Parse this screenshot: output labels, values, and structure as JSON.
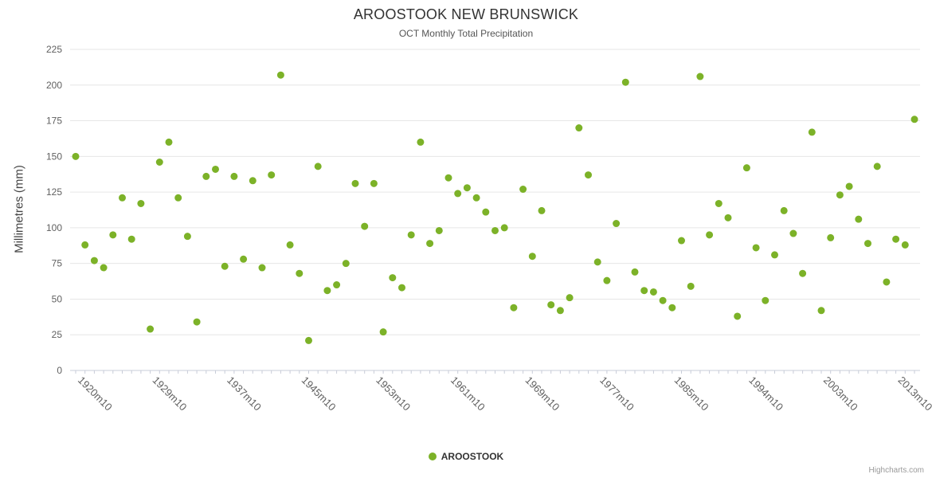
{
  "header": {
    "title": "AROOSTOOK NEW BRUNSWICK",
    "subtitle": "OCT Monthly Total Precipitation"
  },
  "legend": {
    "items": [
      {
        "label": "AROOSTOOK",
        "color": "#7cb228"
      }
    ]
  },
  "credits": {
    "label": "Highcharts.com"
  },
  "colors": {
    "title": "#333333",
    "subtitle": "#555555",
    "y_title": "#444444",
    "axis_label": "#606060",
    "legend": "#333333",
    "credits": "#999999",
    "grid": "#e6e6e6",
    "axis_line": "#c8ccd8",
    "marker": "#7cb228"
  },
  "chart_data": {
    "type": "scatter",
    "title": "AROOSTOOK NEW BRUNSWICK",
    "subtitle": "OCT Monthly Total Precipitation",
    "xlabel": "",
    "ylabel": "Millimetres (mm)",
    "ylim": [
      0,
      225
    ],
    "ytick_interval": 25,
    "x_tick_step": 8,
    "grid": true,
    "legend_position": "bottom",
    "series_name": "AROOSTOOK",
    "categories": [
      "1920m10",
      "1921m10",
      "1922m10",
      "1923m10",
      "1924m10",
      "1926m10",
      "1927m10",
      "1928m10",
      "1929m10",
      "1930m10",
      "1931m10",
      "1932m10",
      "1933m10",
      "1934m10",
      "1935m10",
      "1936m10",
      "1937m10",
      "1938m10",
      "1939m10",
      "1940m10",
      "1941m10",
      "1942m10",
      "1943m10",
      "1944m10",
      "1945m10",
      "1946m10",
      "1947m10",
      "1948m10",
      "1949m10",
      "1950m10",
      "1951m10",
      "1952m10",
      "1953m10",
      "1954m10",
      "1955m10",
      "1956m10",
      "1957m10",
      "1958m10",
      "1959m10",
      "1960m10",
      "1961m10",
      "1962m10",
      "1963m10",
      "1964m10",
      "1965m10",
      "1966m10",
      "1967m10",
      "1968m10",
      "1969m10",
      "1970m10",
      "1971m10",
      "1972m10",
      "1973m10",
      "1974m10",
      "1975m10",
      "1976m10",
      "1977m10",
      "1978m10",
      "1979m10",
      "1980m10",
      "1981m10",
      "1982m10",
      "1983m10",
      "1984m10",
      "1985m10",
      "1986m10",
      "1987m10",
      "1988m10",
      "1989m10",
      "1991m10",
      "1992m10",
      "1993m10",
      "1994m10",
      "1995m10",
      "1996m10",
      "1997m10",
      "1998m10",
      "2000m10",
      "2001m10",
      "2002m10",
      "2003m10",
      "2004m10",
      "2005m10",
      "2007m10",
      "2008m10",
      "2009m10",
      "2011m10",
      "2012m10",
      "2013m10",
      "2014m10",
      "2015m10"
    ],
    "values": [
      150,
      88,
      77,
      72,
      95,
      121,
      92,
      117,
      29,
      146,
      160,
      121,
      94,
      34,
      136,
      141,
      73,
      136,
      78,
      133,
      72,
      137,
      207,
      88,
      68,
      21,
      143,
      56,
      60,
      75,
      131,
      101,
      131,
      27,
      65,
      58,
      95,
      160,
      89,
      98,
      135,
      124,
      128,
      121,
      111,
      98,
      100,
      44,
      127,
      80,
      112,
      46,
      42,
      51,
      170,
      137,
      76,
      63,
      103,
      202,
      69,
      56,
      55,
      49,
      44,
      91,
      59,
      206,
      95,
      117,
      107,
      38,
      142,
      86,
      49,
      81,
      112,
      96,
      68,
      167,
      42,
      93,
      123,
      129,
      106,
      89,
      143,
      62,
      92,
      88,
      176
    ]
  }
}
